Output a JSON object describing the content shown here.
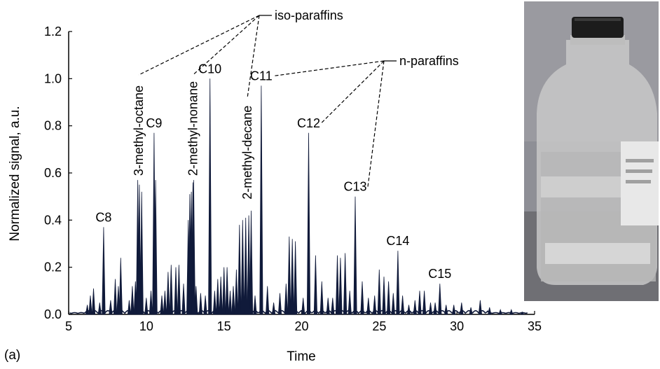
{
  "panel_label": "(a)",
  "chart_data": {
    "type": "line",
    "xlabel": "Time",
    "ylabel": "Normalized signal, a.u.",
    "xlim": [
      5,
      35
    ],
    "ylim": [
      0,
      1.2
    ],
    "xticks": [
      "5",
      "10",
      "15",
      "20",
      "25",
      "30",
      "35"
    ],
    "yticks": [
      "0.0",
      "0.2",
      "0.4",
      "0.6",
      "0.8",
      "1.0",
      "1.2"
    ],
    "grid": false,
    "series": [
      {
        "name": "",
        "color": "#101a3a",
        "peaks": [
          [
            6.2,
            0.04
          ],
          [
            6.4,
            0.08
          ],
          [
            6.6,
            0.11
          ],
          [
            7.0,
            0.05
          ],
          [
            7.25,
            0.37
          ],
          [
            7.7,
            0.06
          ],
          [
            8.0,
            0.15
          ],
          [
            8.2,
            0.12
          ],
          [
            8.35,
            0.24
          ],
          [
            8.9,
            0.06
          ],
          [
            9.1,
            0.12
          ],
          [
            9.3,
            0.14
          ],
          [
            9.45,
            0.57
          ],
          [
            9.55,
            0.55
          ],
          [
            9.7,
            0.52
          ],
          [
            10.0,
            0.07
          ],
          [
            10.3,
            0.1
          ],
          [
            10.5,
            0.77
          ],
          [
            10.6,
            0.57
          ],
          [
            11.0,
            0.08
          ],
          [
            11.2,
            0.1
          ],
          [
            11.4,
            0.18
          ],
          [
            11.6,
            0.21
          ],
          [
            11.9,
            0.2
          ],
          [
            12.1,
            0.21
          ],
          [
            12.4,
            0.13
          ],
          [
            12.7,
            0.4
          ],
          [
            12.8,
            0.51
          ],
          [
            12.9,
            0.52
          ],
          [
            13.0,
            0.56
          ],
          [
            13.05,
            0.57
          ],
          [
            13.2,
            0.12
          ],
          [
            13.5,
            0.09
          ],
          [
            13.8,
            0.08
          ],
          [
            14.1,
            1.0
          ],
          [
            14.4,
            0.1
          ],
          [
            14.6,
            0.15
          ],
          [
            14.8,
            0.16
          ],
          [
            15.0,
            0.2
          ],
          [
            15.2,
            0.2
          ],
          [
            15.4,
            0.1
          ],
          [
            15.6,
            0.12
          ],
          [
            15.8,
            0.19
          ],
          [
            16.0,
            0.38
          ],
          [
            16.2,
            0.4
          ],
          [
            16.4,
            0.41
          ],
          [
            16.6,
            0.42
          ],
          [
            16.75,
            0.44
          ],
          [
            17.0,
            0.08
          ],
          [
            17.4,
            0.97
          ],
          [
            17.8,
            0.12
          ],
          [
            18.2,
            0.05
          ],
          [
            18.6,
            0.09
          ],
          [
            19.0,
            0.13
          ],
          [
            19.2,
            0.33
          ],
          [
            19.4,
            0.32
          ],
          [
            19.6,
            0.31
          ],
          [
            20.1,
            0.07
          ],
          [
            20.45,
            0.77
          ],
          [
            20.9,
            0.25
          ],
          [
            21.3,
            0.14
          ],
          [
            21.7,
            0.07
          ],
          [
            22.0,
            0.07
          ],
          [
            22.3,
            0.25
          ],
          [
            22.5,
            0.24
          ],
          [
            22.8,
            0.26
          ],
          [
            23.1,
            0.1
          ],
          [
            23.45,
            0.5
          ],
          [
            23.9,
            0.14
          ],
          [
            24.3,
            0.07
          ],
          [
            24.7,
            0.08
          ],
          [
            25.0,
            0.19
          ],
          [
            25.3,
            0.16
          ],
          [
            25.6,
            0.14
          ],
          [
            25.9,
            0.09
          ],
          [
            26.2,
            0.27
          ],
          [
            26.5,
            0.08
          ],
          [
            26.9,
            0.04
          ],
          [
            27.3,
            0.06
          ],
          [
            27.6,
            0.1
          ],
          [
            27.9,
            0.1
          ],
          [
            28.3,
            0.05
          ],
          [
            28.6,
            0.05
          ],
          [
            28.9,
            0.13
          ],
          [
            29.3,
            0.04
          ],
          [
            29.8,
            0.04
          ],
          [
            30.3,
            0.05
          ],
          [
            30.9,
            0.03
          ],
          [
            31.5,
            0.06
          ],
          [
            32.1,
            0.03
          ],
          [
            32.8,
            0.02
          ],
          [
            33.5,
            0.02
          ],
          [
            34.2,
            0.01
          ]
        ]
      }
    ],
    "peak_labels": [
      {
        "text": "C8",
        "x": 7.25,
        "y": 0.37,
        "rotated": false
      },
      {
        "text": "3-methyl-octane",
        "x": 9.5,
        "y": 0.57,
        "rotated": true
      },
      {
        "text": "C9",
        "x": 10.5,
        "y": 0.77,
        "rotated": false
      },
      {
        "text": "2-methyl-nonane",
        "x": 13.0,
        "y": 0.57,
        "rotated": true
      },
      {
        "text": "C10",
        "x": 14.1,
        "y": 1.0,
        "rotated": false
      },
      {
        "text": "2-methyl-decane",
        "x": 16.5,
        "y": 0.47,
        "rotated": true
      },
      {
        "text": "C11",
        "x": 17.4,
        "y": 0.97,
        "rotated": false
      },
      {
        "text": "C12",
        "x": 20.45,
        "y": 0.77,
        "rotated": false
      },
      {
        "text": "C13",
        "x": 23.45,
        "y": 0.5,
        "rotated": false
      },
      {
        "text": "C14",
        "x": 26.2,
        "y": 0.27,
        "rotated": false
      },
      {
        "text": "C15",
        "x": 28.9,
        "y": 0.13,
        "rotated": false
      }
    ],
    "group_annotations": [
      {
        "text": "iso-paraffins",
        "members": [
          "3-methyl-octane",
          "2-methyl-nonane",
          "2-methyl-decane"
        ]
      },
      {
        "text": "n-paraffins",
        "members": [
          "C11",
          "C12",
          "C13"
        ]
      }
    ]
  },
  "photo": {
    "subject": "glass bottle with black screw cap containing clear liquid",
    "cap_color": "#1c1c1c",
    "background_color": "#9a9aa0"
  }
}
